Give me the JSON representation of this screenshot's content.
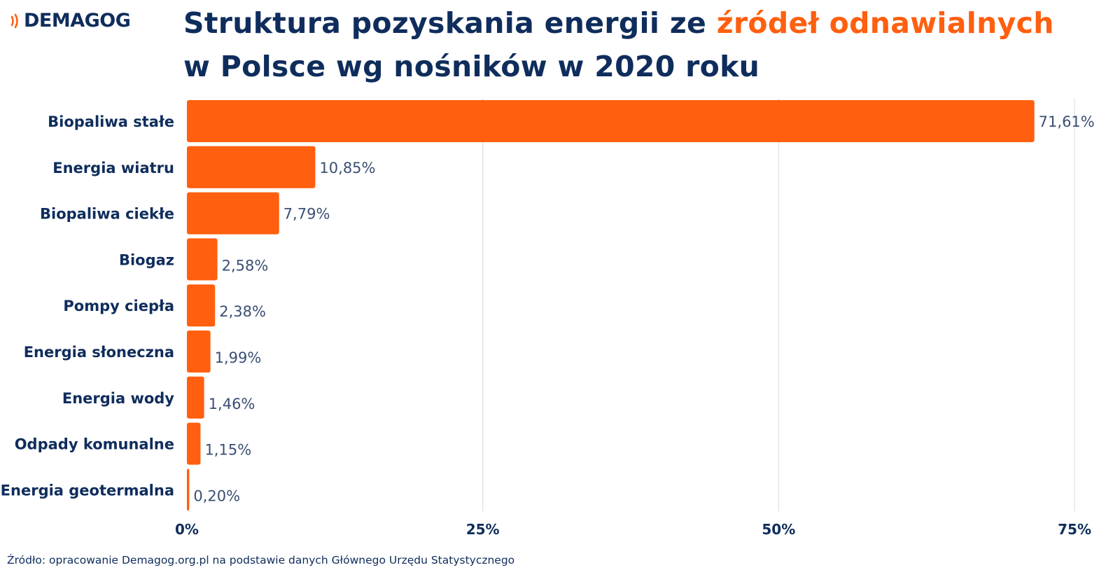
{
  "logo": {
    "text": "DEMAGOG",
    "icon": "signal-waves-icon"
  },
  "title": {
    "line1_pre": "Struktura pozyskania energii ze ",
    "line1_highlight": "źródeł odnawialnych",
    "line2": "w Polsce wg nośników w 2020 roku"
  },
  "colors": {
    "bar": "#ff5f0f",
    "text": "#0f2d5c",
    "value": "#3b4f73",
    "grid": "#d5d9e3"
  },
  "source": "Źródło: opracowanie Demagog.org.pl na podstawie danych Głównego Urzędu Statystycznego",
  "chart_data": {
    "type": "bar",
    "orientation": "horizontal",
    "categories": [
      "Biopaliwa stałe",
      "Energia wiatru",
      "Biopaliwa ciekłe",
      "Biogaz",
      "Pompy ciepła",
      "Energia słoneczna",
      "Energia wody",
      "Odpady komunalne",
      "Energia geotermalna"
    ],
    "values": [
      71.61,
      10.85,
      7.79,
      2.58,
      2.38,
      1.99,
      1.46,
      1.15,
      0.2
    ],
    "value_labels": [
      "71,61%",
      "10,85%",
      "7,79%",
      "2,58%",
      "2,38%",
      "1,99%",
      "1,46%",
      "1,15%",
      "0,20%"
    ],
    "xlim": [
      0,
      75
    ],
    "xticks": [
      0,
      25,
      50,
      75
    ],
    "xtick_labels": [
      "0%",
      "25%",
      "50%",
      "75%"
    ],
    "grid": true,
    "legend": "none"
  }
}
